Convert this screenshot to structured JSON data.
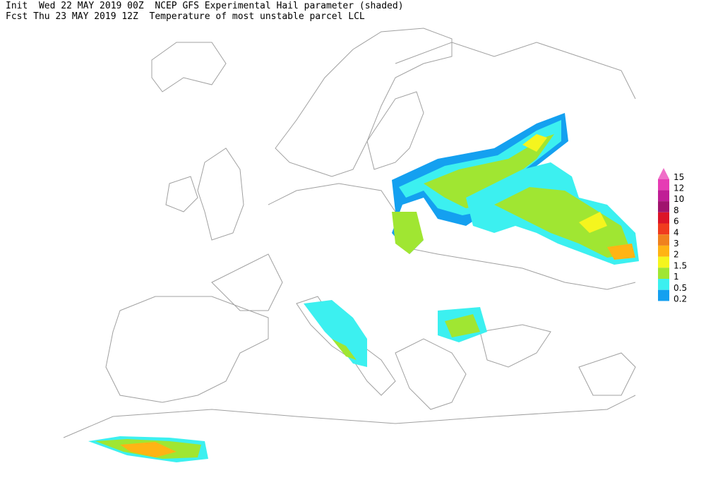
{
  "header": {
    "line1": "Init  Wed 22 MAY 2019 00Z  NCEP GFS Experimental Hail parameter (shaded)",
    "line2": "Fcst Thu 23 MAY 2019 12Z  Temperature of most unstable parcel LCL"
  },
  "legend": [
    {
      "label": "15",
      "color": "#f06ec8"
    },
    {
      "label": "12",
      "color": "#e63cb4"
    },
    {
      "label": "10",
      "color": "#c01e96"
    },
    {
      "label": "8",
      "color": "#a0146e"
    },
    {
      "label": "6",
      "color": "#dc1428"
    },
    {
      "label": "4",
      "color": "#f03c1e"
    },
    {
      "label": "3",
      "color": "#f0821e"
    },
    {
      "label": "2",
      "color": "#ffb414"
    },
    {
      "label": "1.5",
      "color": "#f5f51e"
    },
    {
      "label": "1",
      "color": "#a0e632"
    },
    {
      "label": "0.5",
      "color": "#3cf0f0"
    },
    {
      "label": "0.2",
      "color": "#14a0f0"
    }
  ]
}
